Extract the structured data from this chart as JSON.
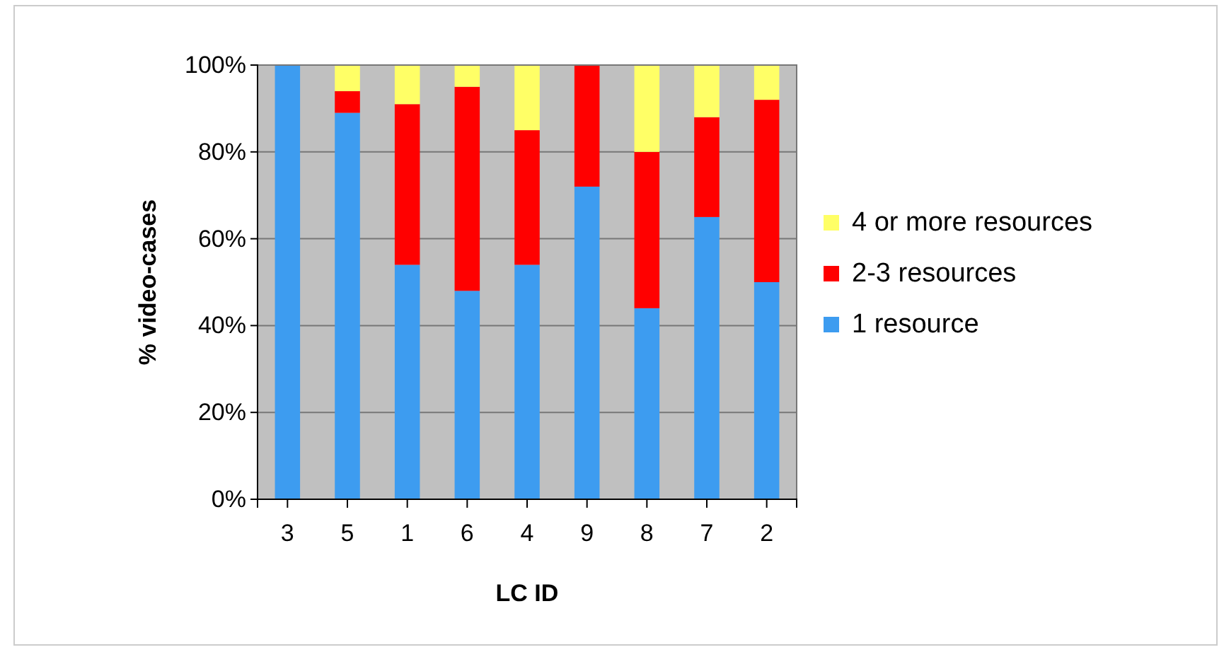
{
  "chart_data": {
    "type": "bar",
    "stacked": true,
    "xlabel": "LC ID",
    "ylabel": "% video-cases",
    "categories": [
      "3",
      "5",
      "1",
      "6",
      "4",
      "9",
      "8",
      "7",
      "2"
    ],
    "series": [
      {
        "name": "1 resource",
        "color": "#3d9cf0",
        "values": [
          100,
          89,
          54,
          48,
          54,
          72,
          44,
          65,
          50
        ]
      },
      {
        "name": "2-3 resources",
        "color": "#ff0000",
        "values": [
          0,
          5,
          37,
          47,
          31,
          28,
          36,
          23,
          42
        ]
      },
      {
        "name": "4 or more resources",
        "color": "#ffff66",
        "values": [
          0,
          6,
          9,
          5,
          15,
          0,
          20,
          12,
          8
        ]
      }
    ],
    "ylim": [
      0,
      100
    ],
    "yticks": [
      {
        "value": 0,
        "label": "0%"
      },
      {
        "value": 20,
        "label": "20%"
      },
      {
        "value": 40,
        "label": "40%"
      },
      {
        "value": 60,
        "label": "60%"
      },
      {
        "value": 80,
        "label": "80%"
      },
      {
        "value": 100,
        "label": "100%"
      }
    ],
    "grid": "y",
    "legend": "right"
  }
}
